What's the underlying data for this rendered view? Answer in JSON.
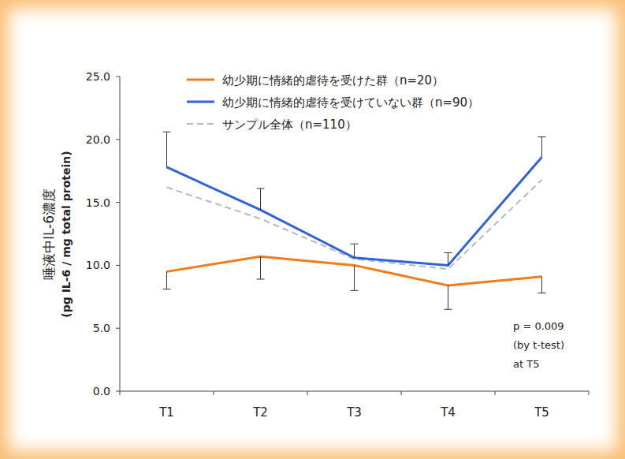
{
  "chart_data": {
    "type": "line",
    "categories": [
      "T1",
      "T2",
      "T3",
      "T4",
      "T5"
    ],
    "series": [
      {
        "name": "幼少期に情緒的虐待を受けた群（n=20）",
        "color": "#f07c1a",
        "line_style": "solid",
        "values": [
          9.5,
          10.7,
          10.0,
          8.4,
          9.1
        ],
        "error_low": [
          1.4,
          1.8,
          2.0,
          1.9,
          1.3
        ]
      },
      {
        "name": "幼少期に情緒的虐待を受けていない群（n=90）",
        "color": "#2f63d6",
        "line_style": "solid",
        "values": [
          17.8,
          14.4,
          10.6,
          10.0,
          18.6
        ],
        "error_high": [
          2.8,
          1.7,
          1.1,
          1.0,
          1.6
        ]
      },
      {
        "name": "サンプル全体（n=110）",
        "color": "#b8b8b8",
        "line_style": "dashed",
        "values": [
          16.2,
          13.7,
          10.5,
          9.7,
          16.8
        ]
      }
    ],
    "y_label": [
      "唾液中IL-6濃度",
      "(pg IL-6 / mg total protein)"
    ],
    "annotations": [
      "p = 0.009",
      "(by t-test)",
      "at T5"
    ],
    "ylim": [
      0,
      25
    ],
    "yticks": [
      {
        "value": 0,
        "label": "0.0"
      },
      {
        "value": 5,
        "label": "5.0"
      },
      {
        "value": 10,
        "label": "10.0"
      },
      {
        "value": 15,
        "label": "15.0"
      },
      {
        "value": 20,
        "label": "20.0"
      },
      {
        "value": 25,
        "label": "25.0"
      }
    ],
    "grid": false,
    "legend": "top"
  }
}
